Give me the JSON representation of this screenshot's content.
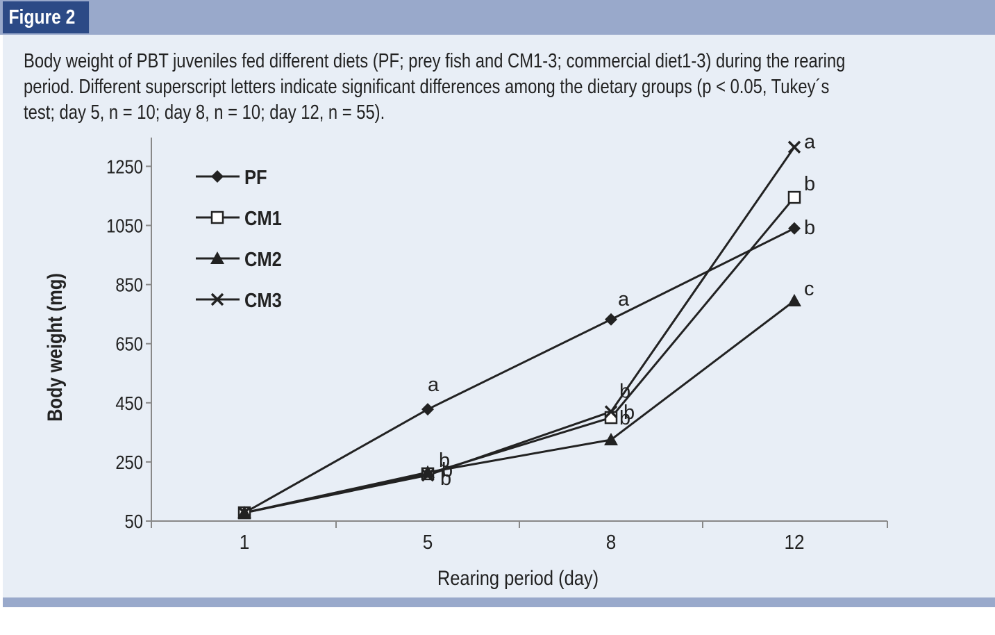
{
  "figure_label": "Figure 2",
  "caption_lines": [
    "Body weight of PBT juveniles fed different diets (PF; prey fish and CM1-3; commercial diet1-3) during the rearing",
    "period. Different superscript letters indicate significant differences among the dietary groups (p < 0.05, Tukey´s",
    "test; day 5, n = 10; day 8, n = 10; day 12, n = 55)."
  ],
  "colors": {
    "header_band": "#99a9cb",
    "figure_label_bg": "#2c4a86",
    "panel_bg": "#e8eef6",
    "axis": "#888888",
    "series": "#222222"
  },
  "chart_data": {
    "type": "line",
    "title": "",
    "xlabel": "Rearing period (day)",
    "ylabel": "Body weight (mg)",
    "categories": [
      "1",
      "5",
      "8",
      "12"
    ],
    "y_ticks": [
      50,
      250,
      450,
      650,
      850,
      1050,
      1250
    ],
    "ylim": [
      50,
      1330
    ],
    "legend_position": "top-left",
    "series": [
      {
        "name": "PF",
        "marker": "diamond",
        "values": [
          78,
          428,
          732,
          1040
        ],
        "labels": [
          "",
          "a",
          "a",
          "b"
        ]
      },
      {
        "name": "CM1",
        "marker": "square",
        "values": [
          78,
          210,
          400,
          1145
        ],
        "labels": [
          "",
          "b",
          "b",
          "b"
        ]
      },
      {
        "name": "CM2",
        "marker": "triangle",
        "values": [
          78,
          215,
          325,
          795
        ],
        "labels": [
          "",
          "b",
          "b",
          "c"
        ]
      },
      {
        "name": "CM3",
        "marker": "x",
        "values": [
          78,
          205,
          420,
          1315
        ],
        "labels": [
          "",
          "b",
          "b",
          "a"
        ]
      }
    ]
  }
}
